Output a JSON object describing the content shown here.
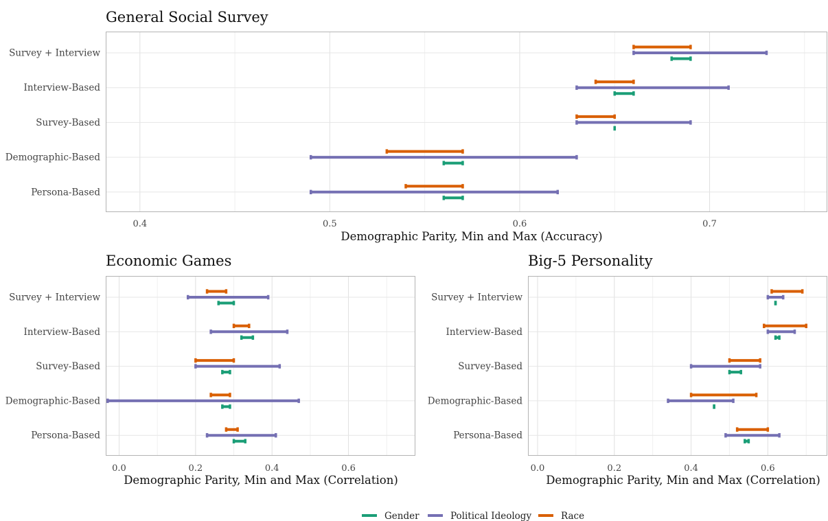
{
  "colors": {
    "Gender": "#1b9e77",
    "Political Ideology": "#7570b3",
    "Race": "#d95f02"
  },
  "legend": [
    "Gender",
    "Political Ideology",
    "Race"
  ],
  "chart_data": [
    {
      "type": "range",
      "title": "General Social Survey",
      "xlabel": "Demographic Parity, Min and Max (Accuracy)",
      "ylabel": "",
      "xlim": [
        0.382,
        0.762
      ],
      "xticks": [
        0.4,
        0.5,
        0.6,
        0.7
      ],
      "xtick_labels": [
        "0.4",
        "0.5",
        "0.6",
        "0.7"
      ],
      "categories": [
        "Survey + Interview",
        "Interview-Based",
        "Survey-Based",
        "Demographic-Based",
        "Persona-Based"
      ],
      "series": [
        {
          "name": "Race",
          "ranges": [
            [
              0.66,
              0.69
            ],
            [
              0.64,
              0.66
            ],
            [
              0.63,
              0.65
            ],
            [
              0.53,
              0.57
            ],
            [
              0.54,
              0.57
            ]
          ]
        },
        {
          "name": "Political Ideology",
          "ranges": [
            [
              0.66,
              0.73
            ],
            [
              0.63,
              0.71
            ],
            [
              0.63,
              0.69
            ],
            [
              0.49,
              0.63
            ],
            [
              0.49,
              0.62
            ]
          ]
        },
        {
          "name": "Gender",
          "ranges": [
            [
              0.68,
              0.69
            ],
            [
              0.65,
              0.66
            ],
            [
              0.65,
              0.65
            ],
            [
              0.56,
              0.57
            ],
            [
              0.56,
              0.57
            ]
          ]
        }
      ],
      "grid": true
    },
    {
      "type": "range",
      "title": "Economic Games",
      "xlabel": "Demographic Parity, Min and Max (Correlation)",
      "ylabel": "",
      "xlim": [
        -0.035,
        0.775
      ],
      "xticks": [
        0.0,
        0.2,
        0.4,
        0.6
      ],
      "xtick_labels": [
        "0.0",
        "0.2",
        "0.4",
        "0.6"
      ],
      "categories": [
        "Survey + Interview",
        "Interview-Based",
        "Survey-Based",
        "Demographic-Based",
        "Persona-Based"
      ],
      "series": [
        {
          "name": "Race",
          "ranges": [
            [
              0.23,
              0.28
            ],
            [
              0.3,
              0.34
            ],
            [
              0.2,
              0.3
            ],
            [
              0.24,
              0.29
            ],
            [
              0.28,
              0.31
            ]
          ]
        },
        {
          "name": "Political Ideology",
          "ranges": [
            [
              0.18,
              0.39
            ],
            [
              0.24,
              0.44
            ],
            [
              0.2,
              0.42
            ],
            [
              -0.03,
              0.47
            ],
            [
              0.23,
              0.41
            ]
          ]
        },
        {
          "name": "Gender",
          "ranges": [
            [
              0.26,
              0.3
            ],
            [
              0.32,
              0.35
            ],
            [
              0.27,
              0.29
            ],
            [
              0.27,
              0.29
            ],
            [
              0.3,
              0.33
            ]
          ]
        }
      ],
      "grid": true
    },
    {
      "type": "range",
      "title": "Big-5 Personality",
      "xlabel": "Demographic Parity, Min and Max (Correlation)",
      "ylabel": "",
      "xlim": [
        -0.025,
        0.755
      ],
      "xticks": [
        0.0,
        0.2,
        0.4,
        0.6
      ],
      "xtick_labels": [
        "0.0",
        "0.2",
        "0.4",
        "0.6"
      ],
      "categories": [
        "Survey + Interview",
        "Interview-Based",
        "Survey-Based",
        "Demographic-Based",
        "Persona-Based"
      ],
      "series": [
        {
          "name": "Race",
          "ranges": [
            [
              0.61,
              0.69
            ],
            [
              0.59,
              0.7
            ],
            [
              0.5,
              0.58
            ],
            [
              0.4,
              0.57
            ],
            [
              0.52,
              0.6
            ]
          ]
        },
        {
          "name": "Political Ideology",
          "ranges": [
            [
              0.6,
              0.64
            ],
            [
              0.6,
              0.67
            ],
            [
              0.4,
              0.58
            ],
            [
              0.34,
              0.51
            ],
            [
              0.49,
              0.63
            ]
          ]
        },
        {
          "name": "Gender",
          "ranges": [
            [
              0.62,
              0.62
            ],
            [
              0.62,
              0.63
            ],
            [
              0.5,
              0.53
            ],
            [
              0.46,
              0.46
            ],
            [
              0.54,
              0.55
            ]
          ]
        }
      ],
      "grid": true
    }
  ]
}
